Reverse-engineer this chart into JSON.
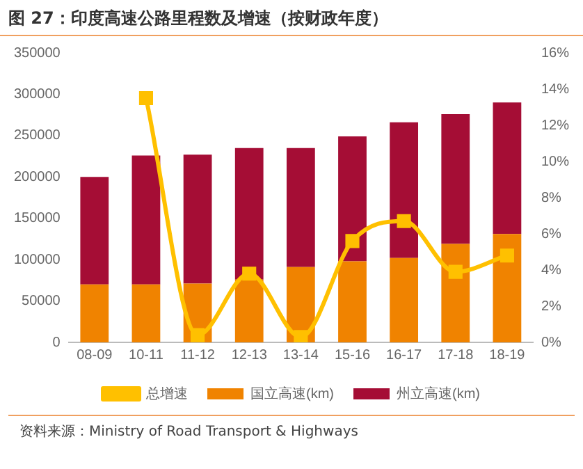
{
  "chart_data": {
    "type": "bar",
    "title": "图 27：印度高速公路里程数及增速（按财政年度）",
    "categories": [
      "08-09",
      "10-11",
      "11-12",
      "12-13",
      "13-14",
      "15-16",
      "16-17",
      "17-18",
      "18-19"
    ],
    "stacked": true,
    "series": [
      {
        "name": "国立高速(km)",
        "color": "#f08300",
        "values": [
          70000,
          70000,
          71000,
          76000,
          91000,
          98000,
          102000,
          119000,
          131000
        ]
      },
      {
        "name": "州立高速(km)",
        "color": "#a50d35",
        "values": [
          130000,
          156000,
          156000,
          159000,
          144000,
          151000,
          164000,
          157000,
          159000
        ]
      },
      {
        "name": "总增速",
        "type": "line",
        "axis": "y2",
        "color": "#ffc000",
        "marker": "square",
        "values": [
          null,
          13.5,
          0.4,
          3.8,
          0.3,
          5.6,
          6.7,
          3.9,
          4.8
        ]
      }
    ],
    "ylim": [
      0,
      350000
    ],
    "yticks": [
      0,
      50000,
      100000,
      150000,
      200000,
      250000,
      300000,
      350000
    ],
    "y2lim": [
      0,
      16
    ],
    "y2ticks": [
      {
        "value": 0,
        "label": "0%"
      },
      {
        "value": 2,
        "label": "2%"
      },
      {
        "value": 4,
        "label": "4%"
      },
      {
        "value": 6,
        "label": "6%"
      },
      {
        "value": 8,
        "label": "8%"
      },
      {
        "value": 10,
        "label": "10%"
      },
      {
        "value": 12,
        "label": "12%"
      },
      {
        "value": 14,
        "label": "14%"
      },
      {
        "value": 16,
        "label": "16%"
      }
    ],
    "grid": false,
    "legend": "bottom",
    "annotations": [
      "资料来源：Ministry of Road Transport & Highways"
    ]
  }
}
